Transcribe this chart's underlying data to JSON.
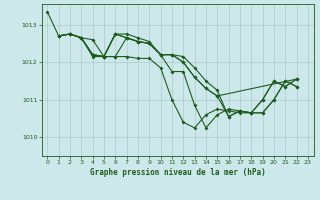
{
  "background_color": "#cde8ea",
  "grid_color": "#b0c8c8",
  "line_color": "#1e5c1e",
  "title": "Graphe pression niveau de la mer (hPa)",
  "xlim": [
    -0.5,
    23.5
  ],
  "ylim": [
    1009.5,
    1013.55
  ],
  "yticks": [
    1010,
    1011,
    1012,
    1013
  ],
  "xticks": [
    0,
    1,
    2,
    3,
    4,
    5,
    6,
    7,
    8,
    9,
    10,
    11,
    12,
    13,
    14,
    15,
    16,
    17,
    18,
    19,
    20,
    21,
    22,
    23
  ],
  "series": [
    {
      "x": [
        0,
        1,
        2,
        3,
        4,
        5,
        6,
        7,
        8,
        9,
        10,
        11,
        12,
        13,
        14,
        15,
        16,
        17,
        18,
        19,
        20,
        21,
        22
      ],
      "y": [
        1013.35,
        1012.7,
        1012.75,
        1012.65,
        1012.6,
        1012.15,
        1012.15,
        1012.65,
        1012.55,
        1012.5,
        1012.2,
        1011.75,
        1011.75,
        1010.85,
        1010.25,
        1010.6,
        1010.75,
        1010.7,
        1010.65,
        1011.0,
        1011.5,
        1011.35,
        1011.55
      ]
    },
    {
      "x": [
        1,
        2,
        3,
        4,
        5,
        6,
        7,
        8,
        9,
        10,
        11,
        12,
        13,
        14,
        15,
        16,
        17,
        18,
        19,
        20,
        21,
        22
      ],
      "y": [
        1012.7,
        1012.75,
        1012.65,
        1012.2,
        1012.15,
        1012.75,
        1012.75,
        1012.65,
        1012.55,
        1012.2,
        1012.2,
        1012.15,
        1011.85,
        1011.5,
        1011.25,
        1010.55,
        1010.7,
        1010.65,
        1010.65,
        1011.0,
        1011.5,
        1011.35
      ]
    },
    {
      "x": [
        1,
        2,
        3,
        4,
        5,
        6,
        7,
        8,
        9,
        10,
        11,
        12,
        13,
        14,
        15,
        16,
        17,
        18,
        19,
        20,
        21,
        22
      ],
      "y": [
        1012.7,
        1012.75,
        1012.65,
        1012.2,
        1012.15,
        1012.75,
        1012.65,
        1012.55,
        1012.5,
        1012.2,
        1012.2,
        1012.0,
        1011.6,
        1011.3,
        1011.1,
        1010.55,
        1010.7,
        1010.65,
        1010.65,
        1011.0,
        1011.5,
        1011.35
      ]
    },
    {
      "x": [
        1,
        2,
        3,
        4,
        5,
        6,
        7,
        8,
        9,
        10,
        11,
        12,
        13,
        14,
        15,
        22
      ],
      "y": [
        1012.7,
        1012.75,
        1012.65,
        1012.2,
        1012.15,
        1012.75,
        1012.65,
        1012.55,
        1012.5,
        1012.2,
        1012.2,
        1012.0,
        1011.6,
        1011.3,
        1011.1,
        1011.55
      ]
    },
    {
      "x": [
        2,
        3,
        4,
        5,
        6,
        7,
        8,
        9,
        10,
        11,
        12,
        13,
        14,
        15,
        16,
        17,
        18,
        19,
        20,
        21,
        22
      ],
      "y": [
        1012.75,
        1012.65,
        1012.15,
        1012.15,
        1012.15,
        1012.15,
        1012.1,
        1012.1,
        1011.85,
        1011.0,
        1010.4,
        1010.25,
        1010.6,
        1010.75,
        1010.7,
        1010.65,
        1010.65,
        1011.0,
        1011.5,
        1011.35,
        1011.55
      ]
    }
  ]
}
